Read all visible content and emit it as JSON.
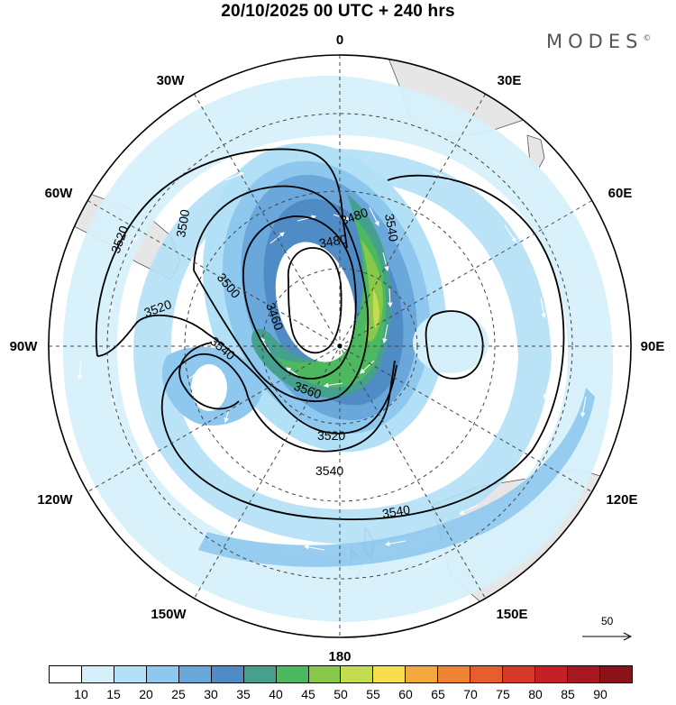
{
  "title": "20/10/2025  00 UTC  + 240 hrs",
  "brand": "MODES",
  "brand_mark": "©",
  "longitude_labels": [
    "0",
    "30E",
    "60E",
    "90E",
    "120E",
    "150E",
    "180",
    "150W",
    "120W",
    "90W",
    "60W",
    "30W"
  ],
  "contour_labels": [
    "3480",
    "3500",
    "3500",
    "3460",
    "3520",
    "3520",
    "3520",
    "3540",
    "3540",
    "3540",
    "3540",
    "3560",
    "3480"
  ],
  "reference_vector": "50",
  "colorbar": {
    "labels": [
      "10",
      "15",
      "20",
      "25",
      "30",
      "35",
      "40",
      "45",
      "50",
      "55",
      "60",
      "65",
      "70",
      "75",
      "80",
      "85",
      "90"
    ],
    "colors": [
      "#ffffff",
      "#d6f0fb",
      "#b2e0f6",
      "#8ec8ee",
      "#6aa8dc",
      "#4f8cc6",
      "#45a08e",
      "#4cb860",
      "#88c84a",
      "#c4dc52",
      "#f6de4c",
      "#f2aa3e",
      "#ee8434",
      "#e65e2e",
      "#d8382a",
      "#c42026",
      "#a81820",
      "#8a1218"
    ]
  },
  "colors": {
    "land": "#e6e6e6",
    "coast": "#555555",
    "contour": "#000000",
    "grid": "#444444"
  }
}
